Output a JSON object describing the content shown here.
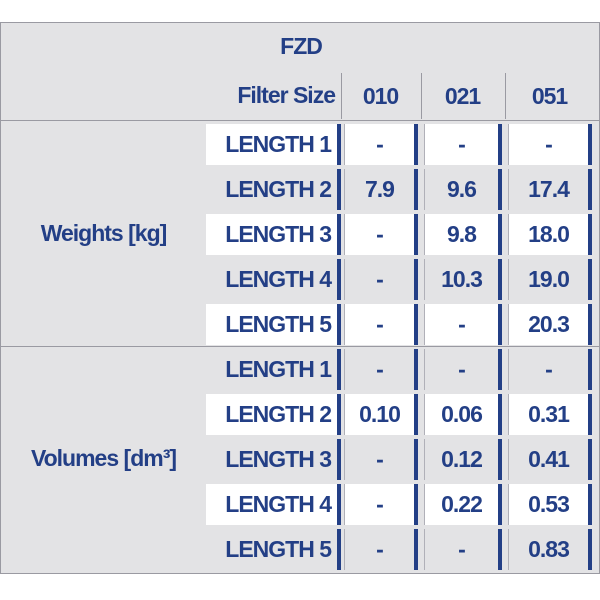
{
  "header": {
    "title": "FZD",
    "filter_size_label": "Filter Size",
    "columns": [
      "010",
      "021",
      "051"
    ]
  },
  "groups": [
    {
      "label": "Weights [kg]",
      "rows": [
        {
          "label": "LENGTH 1",
          "values": [
            "-",
            "-",
            "-"
          ]
        },
        {
          "label": "LENGTH 2",
          "values": [
            "7.9",
            "9.6",
            "17.4"
          ]
        },
        {
          "label": "LENGTH 3",
          "values": [
            "-",
            "9.8",
            "18.0"
          ]
        },
        {
          "label": "LENGTH 4",
          "values": [
            "-",
            "10.3",
            "19.0"
          ]
        },
        {
          "label": "LENGTH 5",
          "values": [
            "-",
            "-",
            "20.3"
          ]
        }
      ]
    },
    {
      "label": "Volumes [dm³]",
      "rows": [
        {
          "label": "LENGTH 1",
          "values": [
            "-",
            "-",
            "-"
          ]
        },
        {
          "label": "LENGTH 2",
          "values": [
            "0.10",
            "0.06",
            "0.31"
          ]
        },
        {
          "label": "LENGTH 3",
          "values": [
            "-",
            "0.12",
            "0.41"
          ]
        },
        {
          "label": "LENGTH 4",
          "values": [
            "-",
            "0.22",
            "0.53"
          ]
        },
        {
          "label": "LENGTH 5",
          "values": [
            "-",
            "-",
            "0.83"
          ]
        }
      ]
    }
  ]
}
